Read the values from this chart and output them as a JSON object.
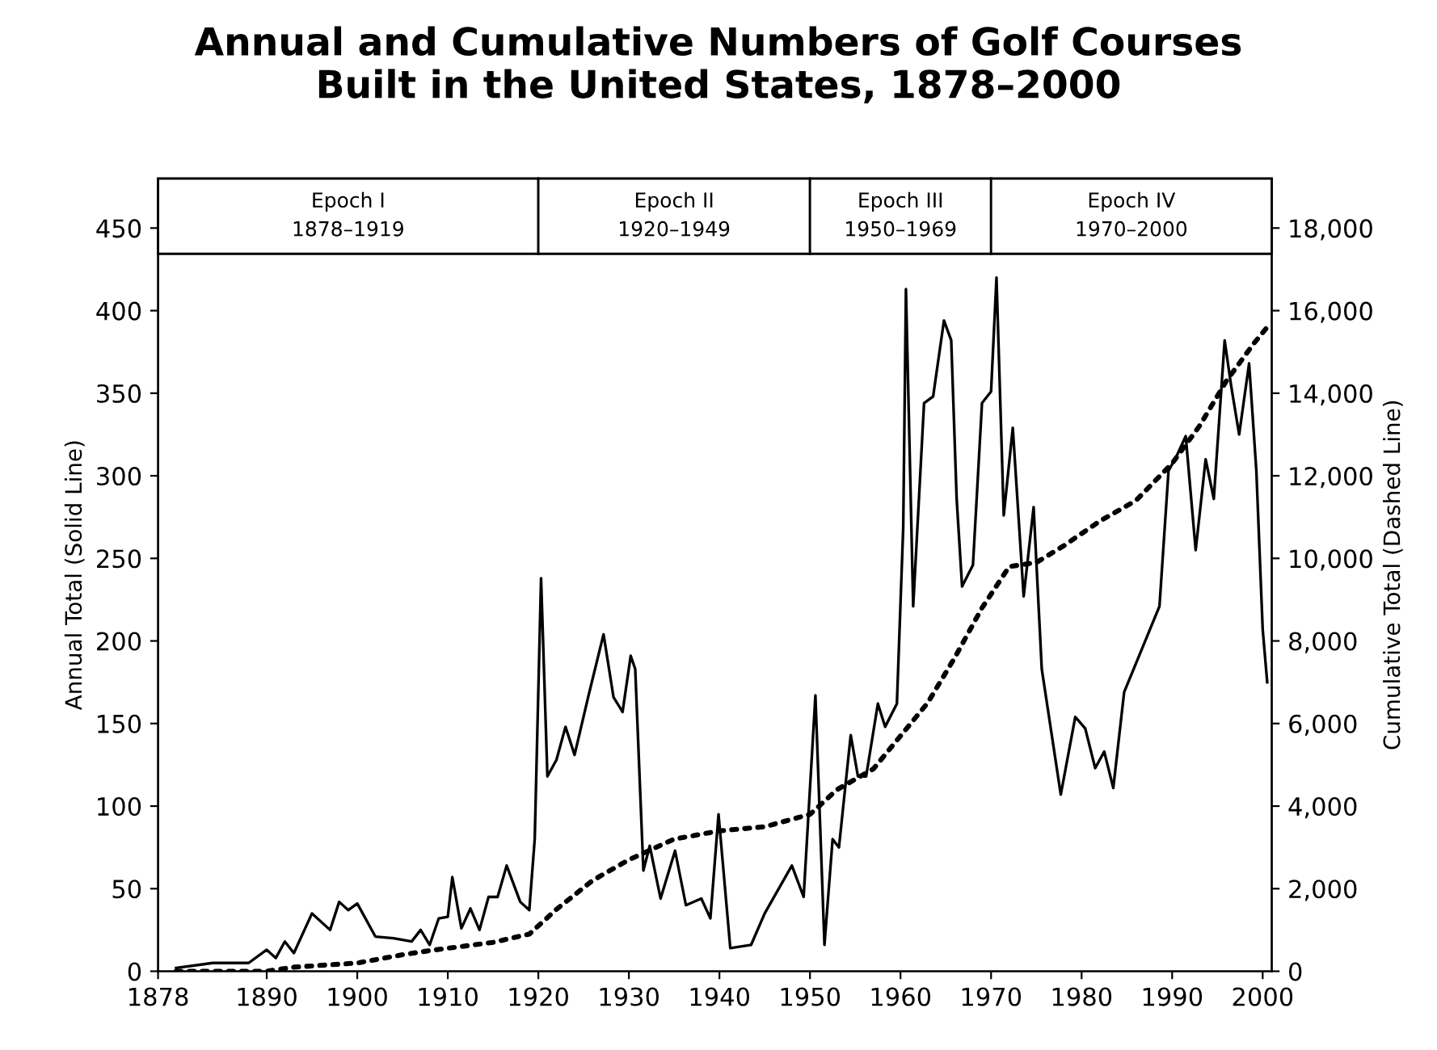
{
  "chart_data": {
    "type": "line",
    "title": "Annual and Cumulative Numbers of Golf Courses\nBuilt in the United States, 1878–2000",
    "ylabel": "Annual Total (Solid Line)",
    "y2label": "Cumulative Total (Dashed Line)",
    "xlim": [
      1878,
      2001
    ],
    "xticks": [
      1878,
      1890,
      1900,
      1910,
      1920,
      1930,
      1940,
      1950,
      1960,
      1970,
      1980,
      1990,
      2000
    ],
    "ylim": [
      0,
      480
    ],
    "yticks": [
      0,
      50,
      100,
      150,
      200,
      250,
      300,
      350,
      400,
      450
    ],
    "y2lim": [
      0,
      19200
    ],
    "y2ticks": [
      0,
      {
        "value": 2000,
        "label": "2,000"
      },
      {
        "value": 4000,
        "label": "4,000"
      },
      {
        "value": 6000,
        "label": "6,000"
      },
      {
        "value": 8000,
        "label": "8,000"
      },
      {
        "value": 10000,
        "label": "10,000"
      },
      {
        "value": 12000,
        "label": "12,000"
      },
      {
        "value": 14000,
        "label": "14,000"
      },
      {
        "value": 16000,
        "label": "16,000"
      },
      {
        "value": 18000,
        "label": "18,000"
      }
    ],
    "grid": false,
    "legend": false,
    "marker": "none",
    "bands": [
      {
        "axis": "x",
        "from": 1878,
        "to": 1920,
        "label": "Epoch I\n1878–1919"
      },
      {
        "axis": "x",
        "from": 1920,
        "to": 1950,
        "label": "Epoch II\n1920–1949"
      },
      {
        "axis": "x",
        "from": 1950,
        "to": 1970,
        "label": "Epoch III\n1950–1969"
      },
      {
        "axis": "x",
        "from": 1970,
        "to": 2001,
        "label": "Epoch IV\n1970–2000"
      }
    ],
    "series": [
      {
        "color": "#000000",
        "line_style": "solid",
        "x": [
          1880,
          1884,
          1888,
          1890,
          1891,
          1892,
          1893,
          1895,
          1897,
          1898,
          1899,
          1900,
          1902,
          1904,
          1906,
          1907,
          1908,
          1909,
          1910,
          1910.5,
          1911.5,
          1912.5,
          1913.5,
          1914.5,
          1915.5,
          1916.5,
          1918,
          1919,
          1919.6,
          1920.3,
          1921,
          1922,
          1923,
          1924,
          1925.5,
          1927.2,
          1928.3,
          1929.3,
          1930.2,
          1930.7,
          1931.6,
          1932.3,
          1933.5,
          1935.1,
          1936.3,
          1938,
          1939,
          1939.9,
          1941.2,
          1943.5,
          1945,
          1948,
          1949.3,
          1950.6,
          1951.6,
          1952.5,
          1953.2,
          1954.5,
          1955.3,
          1956.2,
          1957.5,
          1958.3,
          1959.6,
          1960.3,
          1960.6,
          1961.4,
          1962.6,
          1963.6,
          1964.8,
          1965.6,
          1966.2,
          1966.8,
          1968,
          1969,
          1970,
          1970.6,
          1971.4,
          1972.4,
          1973.6,
          1974.7,
          1975.6,
          1977.7,
          1979.3,
          1980.4,
          1981.5,
          1982.5,
          1983.5,
          1984.7,
          1986.5,
          1988.6,
          1989.6,
          1990.5,
          1991.5,
          1992.6,
          1993.7,
          1994.6,
          1995.8,
          1996.5,
          1997.4,
          1998.5,
          1999.3,
          2000,
          2000.5
        ],
        "values": [
          2,
          5,
          5,
          13,
          8,
          18,
          11,
          35,
          25,
          42,
          37,
          41,
          21,
          20,
          18,
          25,
          16,
          32,
          33,
          57,
          26,
          38,
          25,
          45,
          45,
          64,
          42,
          37,
          80,
          238,
          118,
          128,
          148,
          131,
          166,
          204,
          166,
          157,
          191,
          183,
          61,
          76,
          44,
          73,
          40,
          44,
          32,
          95,
          14,
          16,
          35,
          64,
          45,
          167,
          16,
          80,
          75,
          143,
          118,
          118,
          162,
          148,
          162,
          269,
          413,
          221,
          344,
          348,
          394,
          382,
          286,
          233,
          246,
          344,
          351,
          420,
          276,
          329,
          227,
          281,
          183,
          107,
          154,
          147,
          123,
          133,
          111,
          169,
          193,
          221,
          303,
          312,
          324,
          255,
          310,
          286,
          382,
          355,
          325,
          368,
          303,
          207,
          175
        ]
      },
      {
        "color": "#000000",
        "line_style": "dotted",
        "axis": "y2",
        "x": [
          1880,
          1890,
          1893,
          1900,
          1905,
          1908,
          1915,
          1919,
          1922,
          1926,
          1930,
          1935,
          1940,
          1945,
          1950,
          1953,
          1957,
          1960,
          1963,
          1966,
          1969,
          1972,
          1975,
          1978,
          1982,
          1986,
          1990,
          1993,
          1996,
          1999,
          2000.5
        ],
        "values": [
          0,
          0,
          100,
          200,
          400,
          500,
          700,
          900,
          1500,
          2200,
          2700,
          3200,
          3400,
          3500,
          3800,
          4400,
          4900,
          5700,
          6500,
          7600,
          8800,
          9800,
          9900,
          10300,
          10900,
          11400,
          12300,
          13200,
          14300,
          15200,
          15600
        ]
      }
    ]
  }
}
